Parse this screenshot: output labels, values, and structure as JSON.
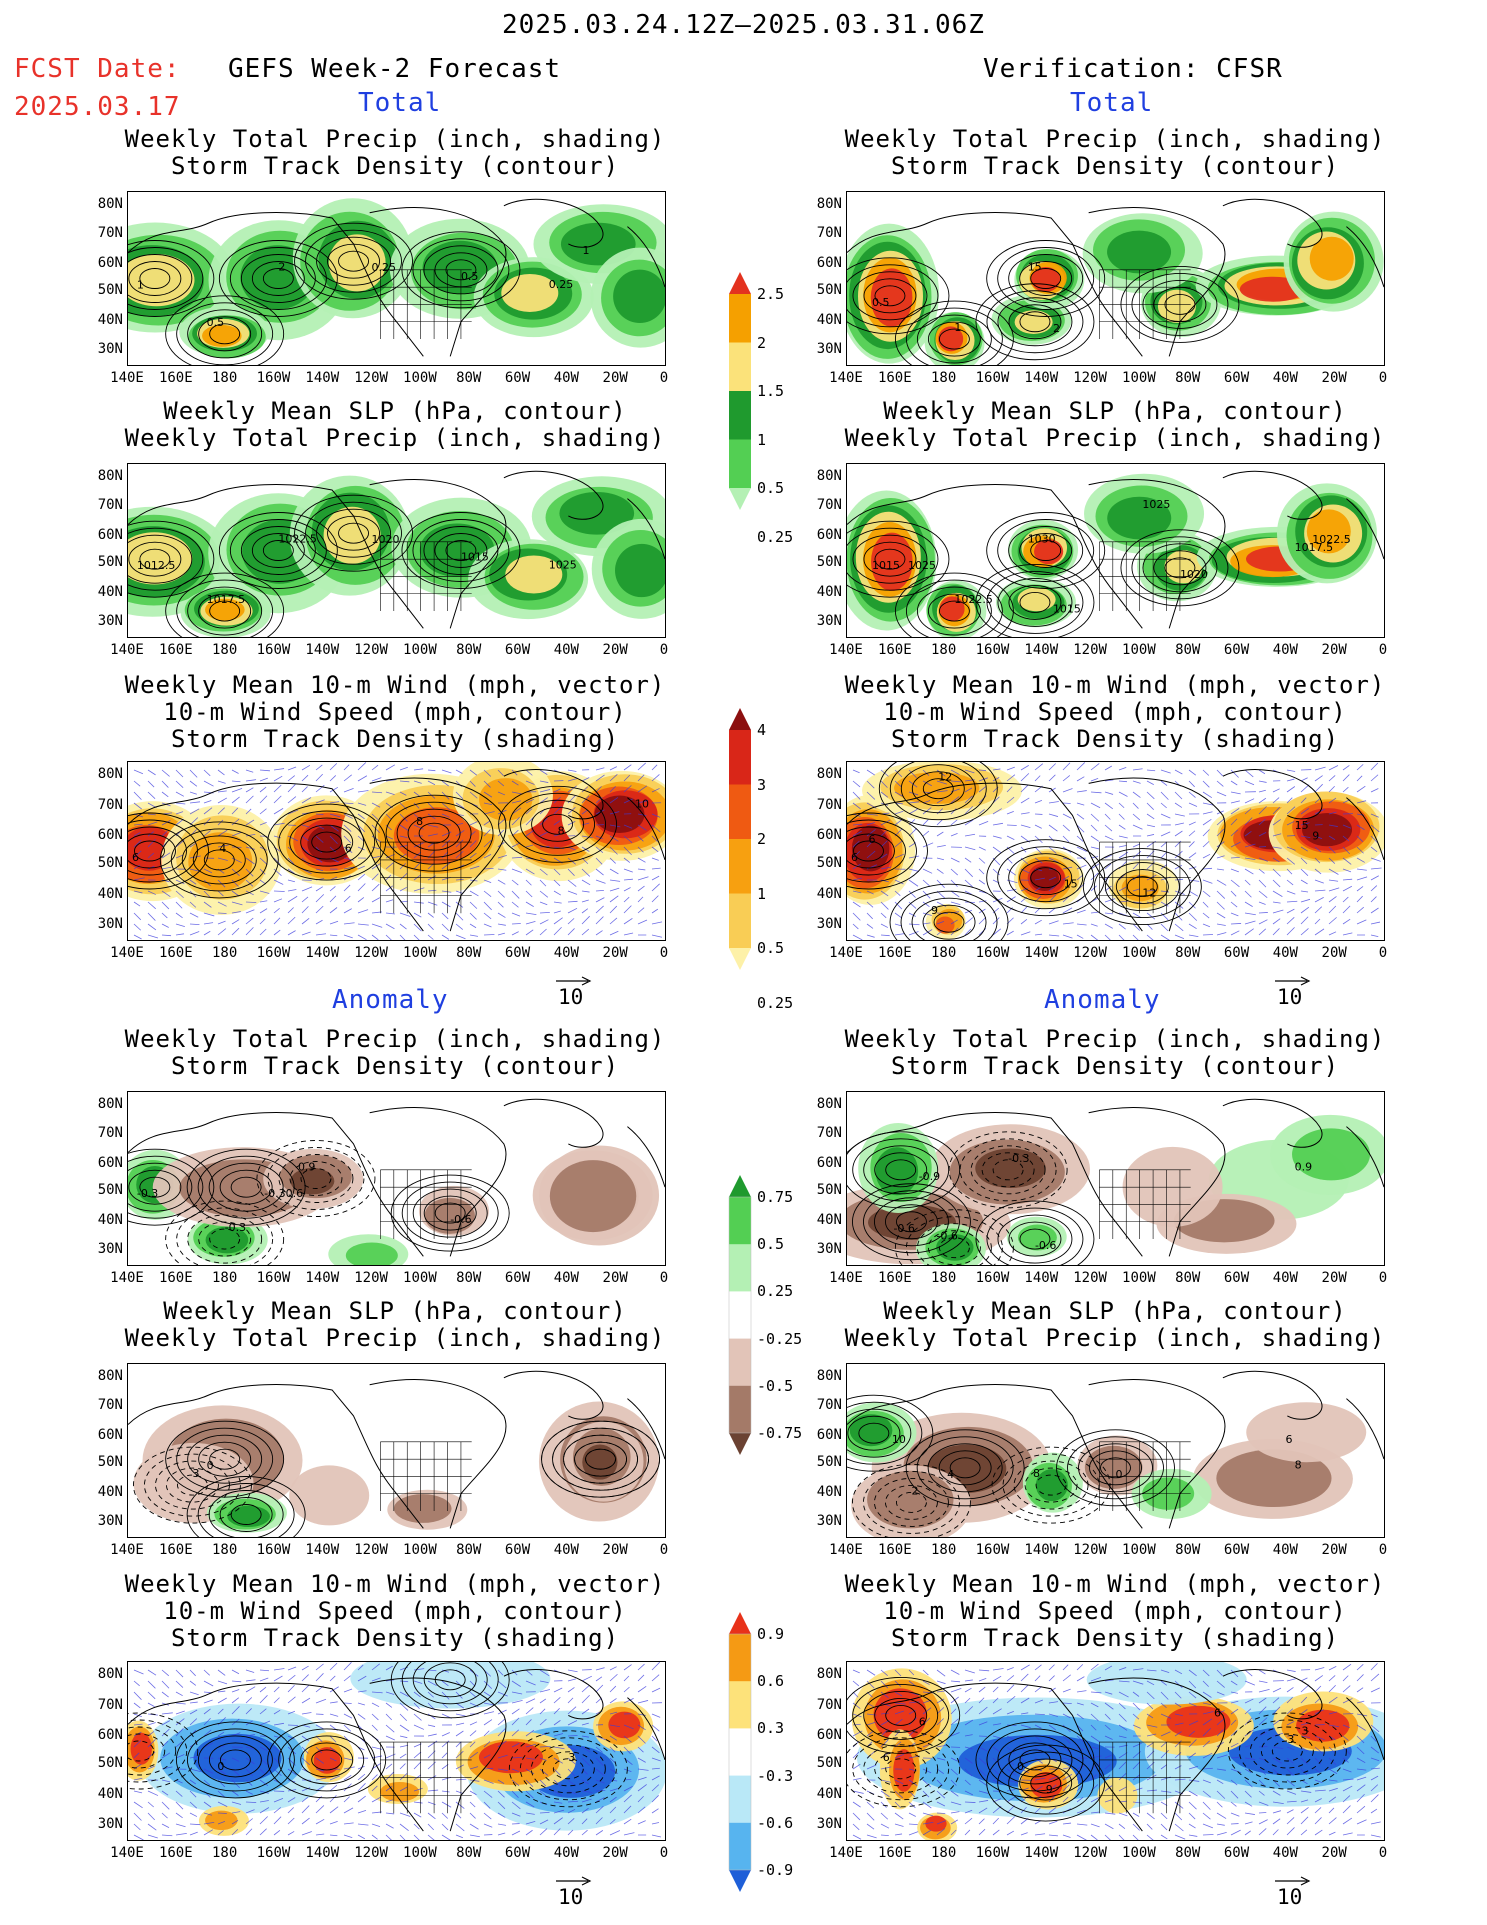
{
  "header": {
    "date_range": "2025.03.24.12Z–2025.03.31.06Z",
    "fcst_label": "FCST Date:",
    "fcst_date": "2025.03.17",
    "left_title": "GEFS Week-2 Forecast",
    "right_title": "Verification: CFSR",
    "total_label": "Total",
    "anomaly_label": "Anomaly"
  },
  "panel_titles": {
    "precip_storm": [
      "Weekly Total Precip (inch, shading)",
      "Storm Track Density (contour)"
    ],
    "slp_precip": [
      "Weekly Mean SLP (hPa, contour)",
      "Weekly Total Precip (inch, shading)"
    ],
    "wind_storm": [
      "Weekly Mean 10-m Wind (mph, vector)",
      "10-m Wind Speed (mph, contour)",
      "Storm Track Density (shading)"
    ]
  },
  "axes": {
    "lat_labels": [
      "80N",
      "70N",
      "60N",
      "50N",
      "40N",
      "30N"
    ],
    "lon_labels": [
      "140E",
      "160E",
      "180",
      "160W",
      "140W",
      "120W",
      "100W",
      "80W",
      "60W",
      "40W",
      "20W",
      "0"
    ]
  },
  "vector_ref": "10",
  "colorbars": {
    "total_precip": {
      "labels": [
        "2.5",
        "2",
        "1.5",
        "1",
        "0.5",
        "0.25"
      ],
      "colors": [
        "#e3321f",
        "#f5a000",
        "#fbe27a",
        "#1f9a2e",
        "#53cf53",
        "#b4f0b4"
      ]
    },
    "total_storm": {
      "labels": [
        "4",
        "3",
        "2",
        "1",
        "0.5",
        "0.25"
      ],
      "colors": [
        "#8c0f0f",
        "#d92618",
        "#ef5a12",
        "#f7a010",
        "#f9cd55",
        "#fdf1a8"
      ]
    },
    "anom_precip": {
      "labels": [
        "0.75",
        "0.5",
        "0.25",
        "-0.25",
        "-0.5",
        "-0.75"
      ],
      "colors": [
        "#1f9a2e",
        "#53cf53",
        "#b4f0b4",
        "#ffffff",
        "#e2c4b8",
        "#a47a68",
        "#6b4232"
      ]
    },
    "anom_storm": {
      "labels": [
        "0.9",
        "0.6",
        "0.3",
        "-0.3",
        "-0.6",
        "-0.9"
      ],
      "colors": [
        "#e8321a",
        "#f59a14",
        "#fde27a",
        "#ffffff",
        "#b9e8f7",
        "#57b4ef",
        "#1f5fd8"
      ]
    }
  },
  "contour_labels": {
    "fc_tot_precip": [
      "1",
      "2",
      "0.25",
      "0.5",
      "0.5",
      "0.25",
      "1"
    ],
    "vf_tot_precip": [
      "0.5",
      "1",
      "2",
      "15"
    ],
    "fc_tot_slp": [
      "1012.5",
      "1022.5",
      "1020",
      "1017.5",
      "1015",
      "1025"
    ],
    "vf_tot_slp": [
      "1015",
      "1022.5",
      "1015",
      "1030",
      "1020",
      "1017.5",
      "1022.5",
      "1025",
      "1025"
    ],
    "fc_tot_wind": [
      "6",
      "4",
      "6",
      "8",
      "8",
      "10"
    ],
    "vf_tot_wind": [
      "6",
      "12",
      "15",
      "9",
      "12",
      "15",
      "9",
      "6"
    ],
    "fc_anm_precip": [
      "-0.3",
      "-0.3",
      "-0.30.6",
      "0.9",
      "-0.6"
    ],
    "vf_anm_precip": [
      "-0.6",
      "-0.3",
      "-0.9",
      "-0.6",
      "-0.6",
      "0.9"
    ],
    "fc_anm_slp": [
      "0",
      "3"
    ],
    "vf_anm_slp": [
      "4",
      "2",
      "10",
      "8",
      "0",
      "8",
      "6"
    ],
    "fc_anm_wind": [
      "0",
      "3"
    ],
    "vf_anm_wind": [
      "0",
      "3",
      "6",
      "6",
      "9",
      "6",
      "3"
    ]
  }
}
